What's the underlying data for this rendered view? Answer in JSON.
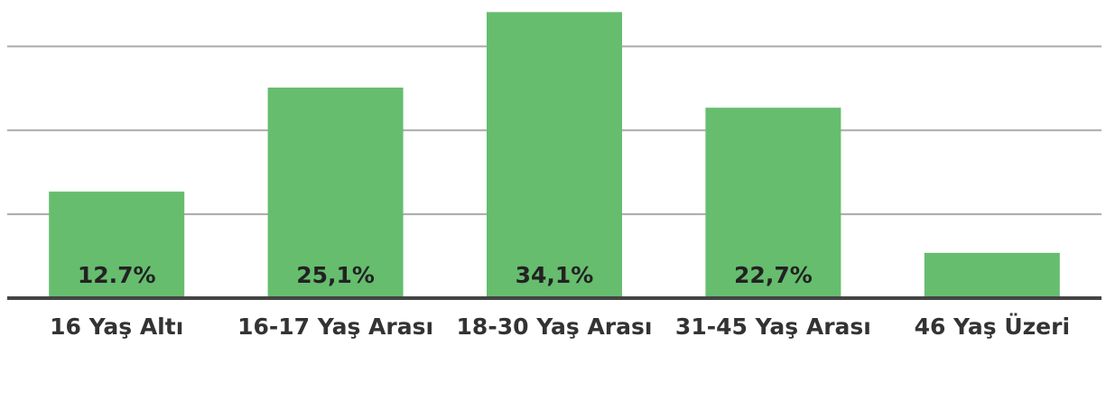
{
  "chart_data": {
    "type": "bar",
    "categories": [
      "16 Yaş Altı",
      "16-17 Yaş Arası",
      "18-30 Yaş Arası",
      "31-45 Yaş Arası",
      "46 Yaş Üzeri"
    ],
    "values": [
      12.7,
      25.1,
      34.1,
      22.7,
      5.4
    ],
    "value_labels": [
      "12.7%",
      "25,1%",
      "34,1%",
      "22,7%",
      null
    ],
    "color": "#66bd6e",
    "ylim": [
      0,
      35
    ],
    "yticks": [
      0,
      10,
      20,
      30
    ],
    "grid": true
  }
}
